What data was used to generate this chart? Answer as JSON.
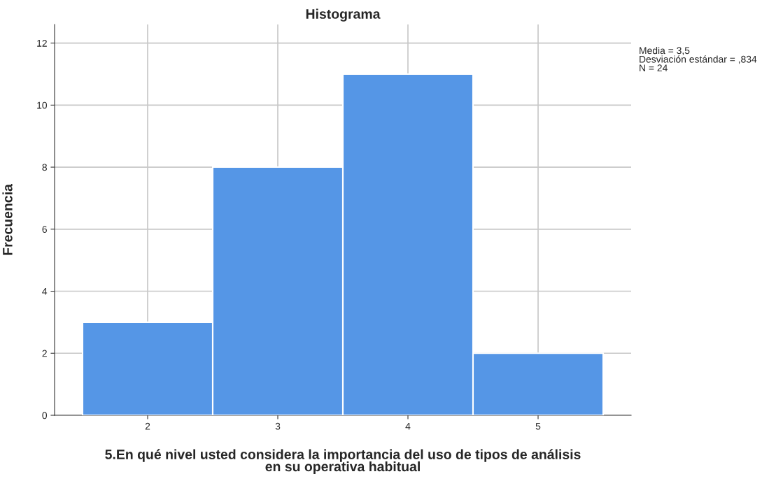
{
  "chart_data": {
    "type": "histogram",
    "title": "Histograma",
    "xlabel": "5.En qué nivel usted considera la importancia del uso de tipos de análisis\nen su operativa habitual",
    "ylabel": "Frecuencia",
    "bins": [
      1.5,
      2.5,
      3.5,
      4.5,
      5.5
    ],
    "values": [
      3,
      8,
      11,
      2
    ],
    "color": "#5596e6",
    "xlim": [
      1.285,
      5.715
    ],
    "xticks": [
      2,
      3,
      4,
      5
    ],
    "ylim": [
      0,
      12.6
    ],
    "yticks": [
      0,
      2,
      4,
      6,
      8,
      10,
      12
    ],
    "grid": true,
    "annotations": [
      "Media = 3,5\nDesviación estándar = ,834\nN = 24"
    ]
  }
}
